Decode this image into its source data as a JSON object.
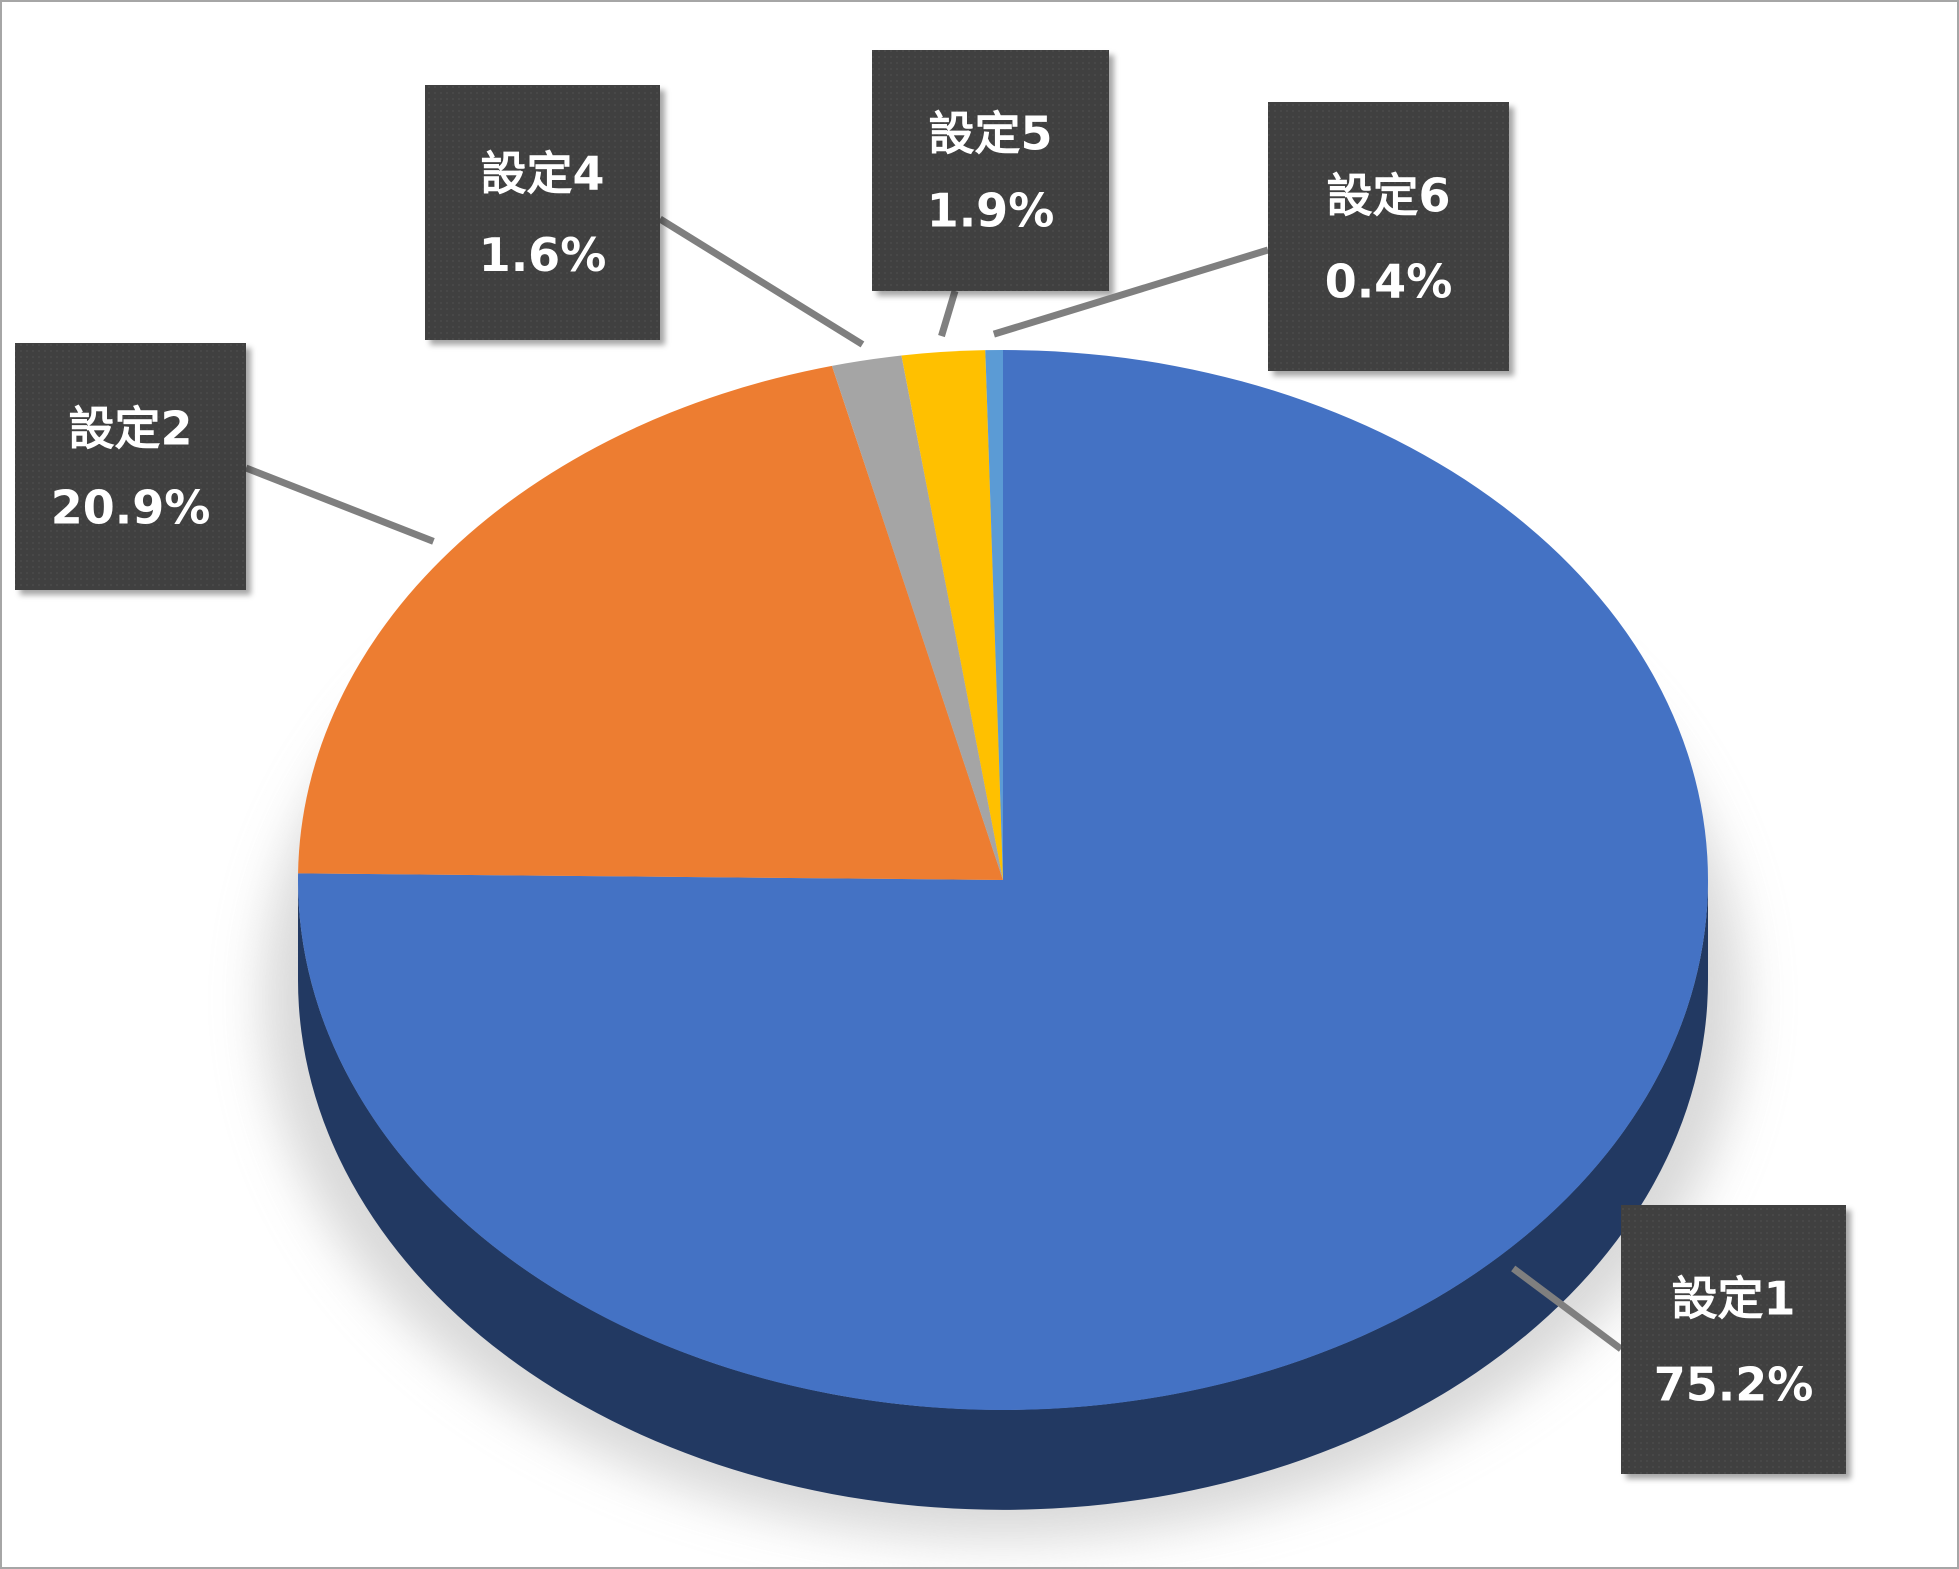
{
  "chart_data": {
    "type": "pie",
    "categories": [
      "設定1",
      "設定2",
      "設定4",
      "設定5",
      "設定6"
    ],
    "values": [
      75.2,
      20.9,
      1.6,
      1.9,
      0.4
    ],
    "value_labels": [
      "75.2%",
      "20.9%",
      "1.6%",
      "1.9%",
      "0.4%"
    ],
    "colors": [
      "#4472c4",
      "#ed7d31",
      "#a5a5a5",
      "#ffc000",
      "#5b9bd5"
    ]
  }
}
